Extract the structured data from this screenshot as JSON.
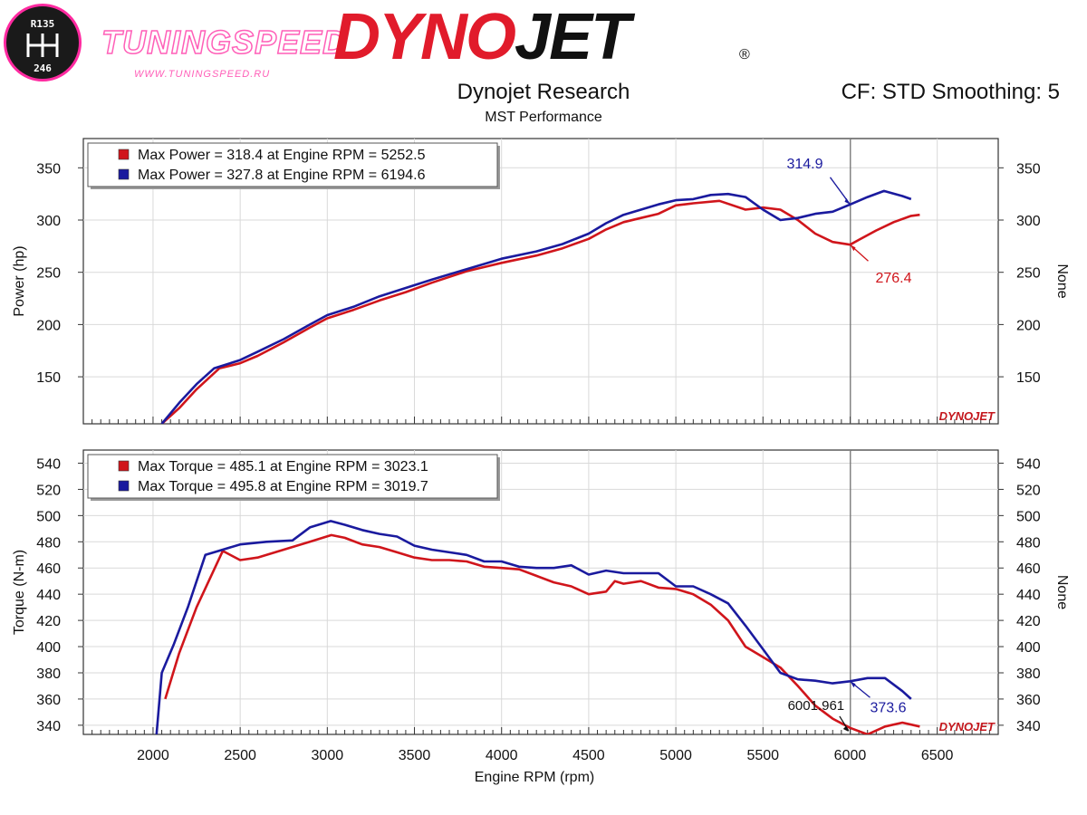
{
  "header": {
    "logo_gear_top": "R135",
    "logo_gear_bottom": "246",
    "watermark_name": "TUNINGSPEED",
    "watermark_url": "WWW.TUNINGSPEED.RU",
    "brand_a": "DYNO",
    "brand_b": "JET",
    "brand_mark": "®",
    "title": "Dynojet Research",
    "subtitle": "MST Performance",
    "settings": "CF: STD Smoothing: 5",
    "plot_watermark": "DYNOJET"
  },
  "colors": {
    "run_red": "#d0151b",
    "run_blue": "#1a1a9e",
    "grid": "#d9d9d9"
  },
  "cursor_rpm": 6001.961,
  "cursor_readout": "6001.961",
  "chart_data": [
    {
      "type": "line",
      "ylabel": "Power (hp)",
      "y2label": "None",
      "xlim": [
        1600,
        6850
      ],
      "ylim": [
        105,
        378
      ],
      "yticks": [
        150,
        200,
        250,
        300,
        350
      ],
      "grid": true,
      "legend_position": "top-left",
      "legend": [
        "Max Power = 318.4 at Engine RPM = 5252.5",
        "Max Power = 327.8 at Engine RPM = 6194.6"
      ],
      "series": [
        {
          "color": "red",
          "x": [
            2050,
            2150,
            2250,
            2380,
            2500,
            2600,
            2750,
            2900,
            3000,
            3150,
            3300,
            3450,
            3600,
            3800,
            4000,
            4200,
            4350,
            4500,
            4600,
            4700,
            4800,
            4900,
            5000,
            5100,
            5250,
            5400,
            5500,
            5600,
            5700,
            5800,
            5900,
            6000,
            6050,
            6150,
            6250,
            6350,
            6400
          ],
          "y": [
            105,
            120,
            138,
            158,
            163,
            170,
            183,
            197,
            206,
            214,
            223,
            231,
            240,
            251,
            259,
            266,
            273,
            282,
            291,
            298,
            302,
            306,
            314,
            316,
            318.4,
            310,
            312,
            310,
            300,
            287,
            279,
            276.4,
            281,
            290,
            298,
            304,
            305
          ]
        },
        {
          "color": "blue",
          "x": [
            2050,
            2150,
            2250,
            2350,
            2500,
            2600,
            2750,
            2900,
            3000,
            3150,
            3300,
            3450,
            3600,
            3800,
            4000,
            4200,
            4350,
            4500,
            4600,
            4700,
            4800,
            4900,
            5000,
            5100,
            5200,
            5300,
            5400,
            5500,
            5600,
            5700,
            5800,
            5900,
            6000,
            6100,
            6194.6,
            6300,
            6350
          ],
          "y": [
            105,
            125,
            143,
            158,
            166,
            174,
            186,
            200,
            209,
            217,
            227,
            235,
            243,
            253,
            263,
            270,
            277,
            287,
            297,
            305,
            310,
            315,
            319,
            320,
            324,
            325,
            322,
            310,
            300,
            302,
            306,
            308,
            314.9,
            322,
            327.8,
            323,
            320
          ]
        }
      ],
      "annotations": [
        {
          "label": "314.9",
          "x": 6000,
          "y": 314.9
        },
        {
          "label": "276.4",
          "x": 6000,
          "y": 276.4
        }
      ]
    },
    {
      "type": "line",
      "ylabel": "Torque (N-m)",
      "y2label": "None",
      "xlabel": "Engine RPM (rpm)",
      "xlim": [
        1600,
        6850
      ],
      "ylim": [
        333,
        550
      ],
      "xticks": [
        2000,
        2500,
        3000,
        3500,
        4000,
        4500,
        5000,
        5500,
        6000,
        6500
      ],
      "yticks": [
        340,
        360,
        380,
        400,
        420,
        440,
        460,
        480,
        500,
        520,
        540
      ],
      "grid": true,
      "legend_position": "top-left",
      "legend": [
        "Max Torque = 485.1 at Engine RPM = 3023.1",
        "Max Torque = 495.8 at Engine RPM = 3019.7"
      ],
      "series": [
        {
          "color": "red",
          "x": [
            2070,
            2150,
            2250,
            2400,
            2500,
            2600,
            2750,
            2900,
            3023.1,
            3100,
            3200,
            3300,
            3400,
            3500,
            3600,
            3700,
            3800,
            3900,
            4000,
            4100,
            4200,
            4300,
            4400,
            4500,
            4600,
            4650,
            4700,
            4800,
            4900,
            5000,
            5100,
            5200,
            5300,
            5400,
            5500,
            5600,
            5700,
            5800,
            5900,
            6000,
            6100,
            6200,
            6300,
            6400
          ],
          "y": [
            360,
            395,
            430,
            473,
            466,
            468,
            474,
            480,
            485.1,
            483,
            478,
            476,
            472,
            468,
            466,
            466,
            465,
            461,
            460,
            459,
            454,
            449,
            446,
            440,
            442,
            450,
            448,
            450,
            445,
            444,
            440,
            432,
            420,
            400,
            392,
            384,
            370,
            355,
            345,
            338,
            333,
            339,
            342,
            339
          ]
        },
        {
          "color": "blue",
          "x": [
            2020,
            2050,
            2120,
            2200,
            2300,
            2400,
            2500,
            2650,
            2800,
            2900,
            3019.7,
            3100,
            3200,
            3300,
            3400,
            3500,
            3600,
            3700,
            3800,
            3900,
            4000,
            4100,
            4200,
            4300,
            4400,
            4500,
            4600,
            4700,
            4800,
            4900,
            5000,
            5100,
            5200,
            5300,
            5400,
            5500,
            5600,
            5700,
            5800,
            5900,
            6000,
            6100,
            6200,
            6300,
            6350
          ],
          "y": [
            333,
            380,
            402,
            430,
            470,
            474,
            478,
            480,
            481,
            491,
            495.8,
            493,
            489,
            486,
            484,
            477,
            474,
            472,
            470,
            465,
            465,
            461,
            460,
            460,
            462,
            455,
            458,
            456,
            456,
            456,
            446,
            446,
            440,
            433,
            416,
            398,
            380,
            375,
            374,
            372,
            373.6,
            376,
            376,
            366,
            360
          ]
        }
      ],
      "annotations": [
        {
          "label": "373.6",
          "x": 6000,
          "y": 373.6
        }
      ]
    }
  ]
}
